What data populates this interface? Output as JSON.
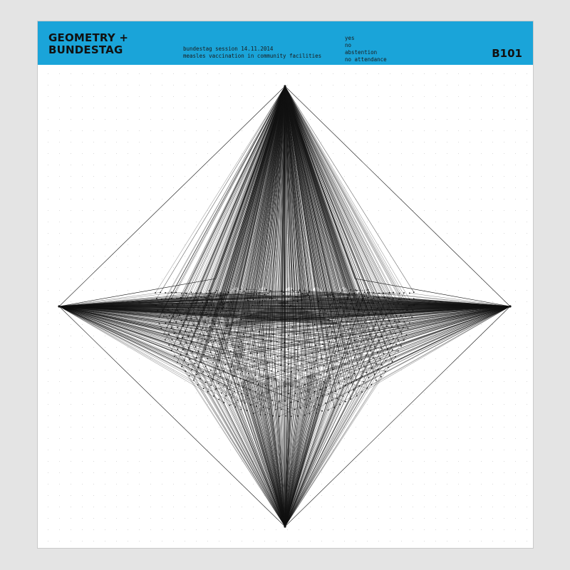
{
  "header": {
    "title_line1": "GEOMETRY +",
    "title_line2": "BUNDESTAG",
    "session_line": "bundestag session 14.11.2014",
    "topic_line": "measles vaccination in community facilities",
    "legend": [
      "yes",
      "no",
      "abstention",
      "no attendance"
    ],
    "code": "B101"
  },
  "colors": {
    "banner": "#1aa4d9",
    "background": "#e4e4e4",
    "poster": "#ffffff",
    "ink": "#111111",
    "grid_dot": "#cfcfcf"
  }
}
